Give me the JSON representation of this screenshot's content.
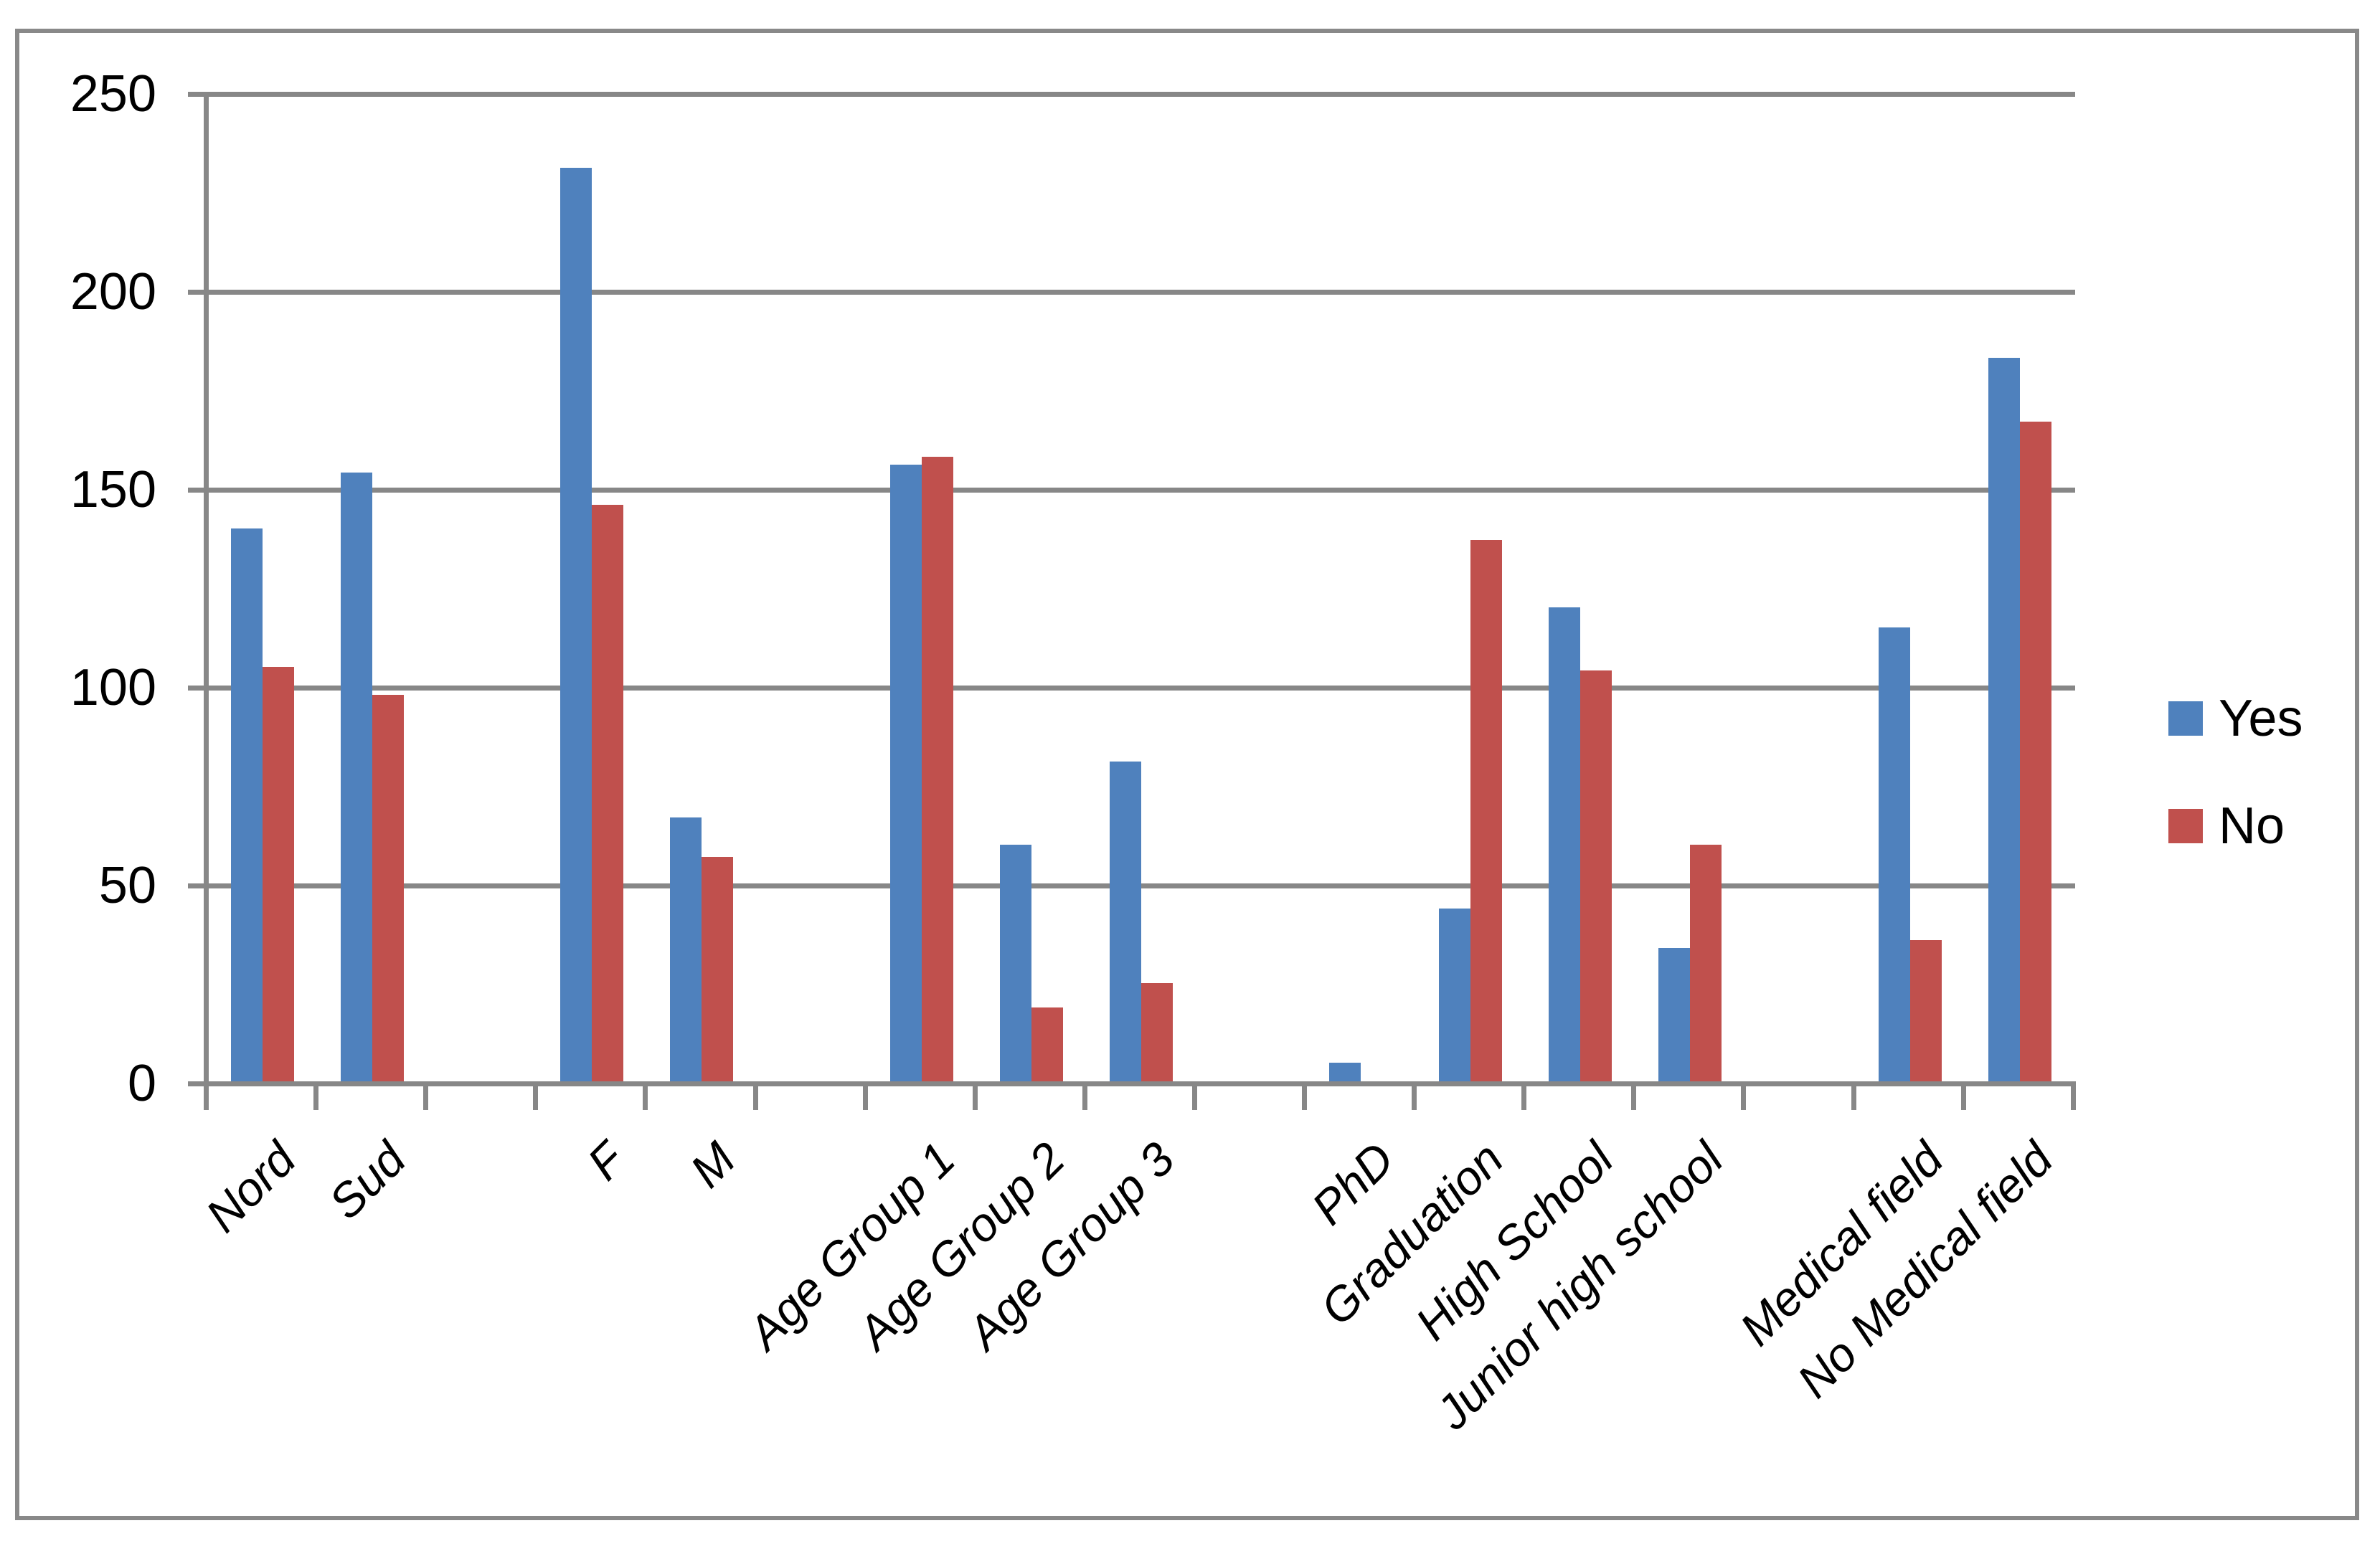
{
  "figure": {
    "background": "#ffffff",
    "frame_color": "#898989",
    "gridline_color": "#878787"
  },
  "legend": {
    "position": "right",
    "items": [
      {
        "label": "Yes",
        "color": "#4F81BD"
      },
      {
        "label": "No",
        "color": "#C0504D"
      }
    ]
  },
  "chart_data": {
    "type": "bar",
    "title": "",
    "xlabel": "",
    "ylabel": "",
    "categories": [
      "Nord",
      "Sud",
      "F",
      "M",
      "Age Group 1",
      "Age Group 2",
      "Age Group 3",
      "PhD",
      "Graduation",
      "High School",
      "Junior high school",
      "Medical field",
      "No Medical field"
    ],
    "series": [
      {
        "name": "Yes",
        "color": "#4F81BD",
        "values": [
          141,
          155,
          232,
          68,
          157,
          61,
          82,
          6,
          45,
          121,
          35,
          116,
          184
        ]
      },
      {
        "name": "No",
        "color": "#C0504D",
        "values": [
          106,
          99,
          147,
          58,
          159,
          20,
          26,
          1,
          138,
          105,
          61,
          37,
          168
        ]
      }
    ],
    "ylim": [
      0,
      250
    ],
    "y_ticks": [
      0,
      50,
      100,
      150,
      200,
      250
    ],
    "grid": true,
    "legend_position": "right",
    "category_group_gaps_after": [
      1,
      3,
      6,
      10
    ],
    "x_tick_label_rotation_deg": 45,
    "x_tick_label_style": "italic"
  }
}
